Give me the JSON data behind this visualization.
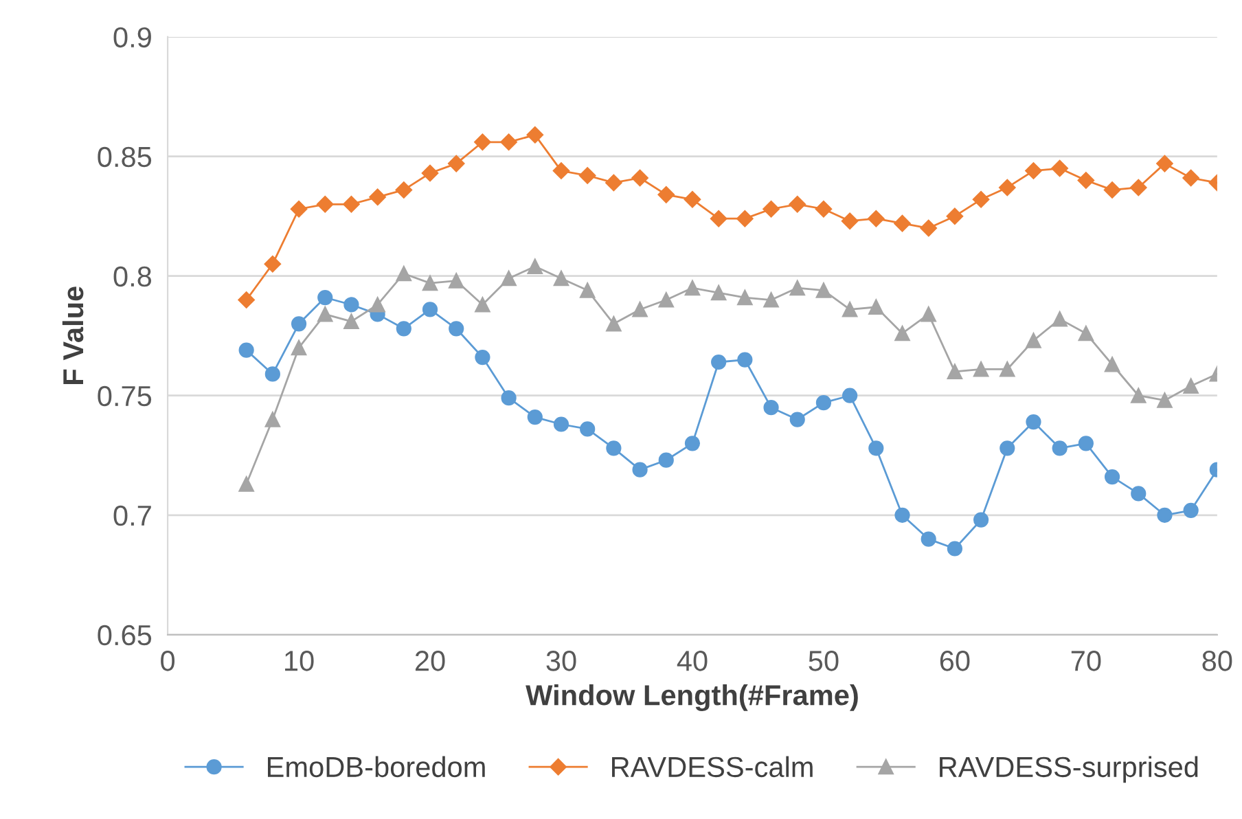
{
  "chart_data": {
    "type": "line",
    "xlabel": "Window Length(#Frame)",
    "ylabel": "F Value",
    "x": [
      6,
      8,
      10,
      12,
      14,
      16,
      18,
      20,
      22,
      24,
      26,
      28,
      30,
      32,
      34,
      36,
      38,
      40,
      42,
      44,
      46,
      48,
      50,
      52,
      54,
      56,
      58,
      60,
      62,
      64,
      66,
      68,
      70,
      72,
      74,
      76,
      78,
      80
    ],
    "series": [
      {
        "name": "EmoDB-boredom",
        "color": "#5b9bd5",
        "marker": "circle",
        "values": [
          0.769,
          0.759,
          0.78,
          0.791,
          0.788,
          0.784,
          0.778,
          0.786,
          0.778,
          0.766,
          0.749,
          0.741,
          0.738,
          0.736,
          0.728,
          0.719,
          0.723,
          0.73,
          0.764,
          0.765,
          0.745,
          0.74,
          0.747,
          0.75,
          0.728,
          0.7,
          0.69,
          0.686,
          0.698,
          0.728,
          0.739,
          0.728,
          0.73,
          0.716,
          0.709,
          0.7,
          0.702,
          0.719
        ]
      },
      {
        "name": "RAVDESS-calm",
        "color": "#ed7d31",
        "marker": "diamond",
        "values": [
          0.79,
          0.805,
          0.828,
          0.83,
          0.83,
          0.833,
          0.836,
          0.843,
          0.847,
          0.856,
          0.856,
          0.859,
          0.844,
          0.842,
          0.839,
          0.841,
          0.834,
          0.832,
          0.824,
          0.824,
          0.828,
          0.83,
          0.828,
          0.823,
          0.824,
          0.822,
          0.82,
          0.825,
          0.832,
          0.837,
          0.844,
          0.845,
          0.84,
          0.836,
          0.837,
          0.847,
          0.841,
          0.839
        ]
      },
      {
        "name": "RAVDESS-surprised",
        "color": "#a5a5a5",
        "marker": "triangle",
        "values": [
          0.713,
          0.74,
          0.77,
          0.784,
          0.781,
          0.788,
          0.801,
          0.797,
          0.798,
          0.788,
          0.799,
          0.804,
          0.799,
          0.794,
          0.78,
          0.786,
          0.79,
          0.795,
          0.793,
          0.791,
          0.79,
          0.795,
          0.794,
          0.786,
          0.787,
          0.776,
          0.784,
          0.76,
          0.761,
          0.761,
          0.773,
          0.782,
          0.776,
          0.763,
          0.75,
          0.748,
          0.754,
          0.759
        ]
      }
    ],
    "xlim": [
      0,
      80
    ],
    "xticks": [
      0,
      10,
      20,
      30,
      40,
      50,
      60,
      70,
      80
    ],
    "ylim": [
      0.65,
      0.9
    ],
    "yticks": [
      0.65,
      0.7,
      0.75,
      0.8,
      0.85,
      0.9
    ],
    "grid": "y",
    "legend": "bottom"
  }
}
